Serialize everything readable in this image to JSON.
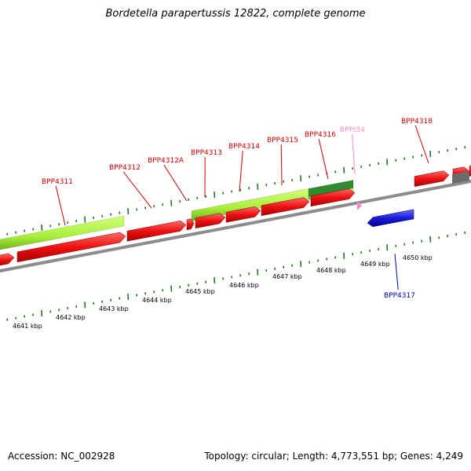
{
  "title": "Bordetella parapertussis 12822, complete genome",
  "footer": {
    "accession": "Accession: NC_002928",
    "summary": "Topology: circular; Length: 4,773,551 bp; Genes: 4,249"
  },
  "colors": {
    "cds_forward": "#ee1111",
    "cds_reverse": "#1a1adb",
    "gene_bar": "#a8ef3a",
    "gene_bar_dark": "#2e8b2e",
    "trna": "#ff88c8",
    "backbone": "#8c8c8c",
    "tick": "#1d7a1d",
    "label_red": "#cc0000",
    "label_blue": "#0000aa",
    "label_pink": "#ff88c8"
  },
  "gene_labels": [
    {
      "name": "BPP4311",
      "color": "label_red"
    },
    {
      "name": "BPP4312",
      "color": "label_red"
    },
    {
      "name": "BPP4312A",
      "color": "label_red"
    },
    {
      "name": "BPP4313",
      "color": "label_red"
    },
    {
      "name": "BPP4314",
      "color": "label_red"
    },
    {
      "name": "BPP4315",
      "color": "label_red"
    },
    {
      "name": "BPP4316",
      "color": "label_red"
    },
    {
      "name": "BPPt54",
      "color": "label_pink"
    },
    {
      "name": "BPP4318",
      "color": "label_red"
    },
    {
      "name": "BPP4317",
      "color": "label_blue"
    }
  ],
  "scale_labels": [
    "4641 kbp",
    "4642 kbp",
    "4643 kbp",
    "4644 kbp",
    "4645 kbp",
    "4646 kbp",
    "4647 kbp",
    "4648 kbp",
    "4649 kbp",
    "4650 kbp"
  ]
}
